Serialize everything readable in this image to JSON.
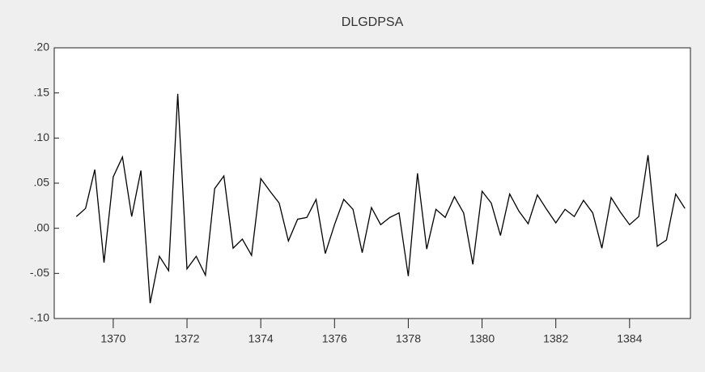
{
  "chart_data": {
    "type": "line",
    "title": "DLGDPSA",
    "x": [
      1369,
      1369.25,
      1369.5,
      1369.75,
      1370,
      1370.25,
      1370.5,
      1370.75,
      1371,
      1371.25,
      1371.5,
      1371.75,
      1372,
      1372.25,
      1372.5,
      1372.75,
      1373,
      1373.25,
      1373.5,
      1373.75,
      1374,
      1374.25,
      1374.5,
      1374.75,
      1375,
      1375.25,
      1375.5,
      1375.75,
      1376,
      1376.25,
      1376.5,
      1376.75,
      1377,
      1377.25,
      1377.5,
      1377.75,
      1378,
      1378.25,
      1378.5,
      1378.75,
      1379,
      1379.25,
      1379.5,
      1379.75,
      1380,
      1380.25,
      1380.5,
      1380.75,
      1381,
      1381.25,
      1381.5,
      1381.75,
      1382,
      1382.25,
      1382.5,
      1382.75,
      1383,
      1383.25,
      1383.5,
      1383.75,
      1384,
      1384.25,
      1384.5,
      1384.75,
      1385,
      1385.25,
      1385.5
    ],
    "series": [
      {
        "color": "#000000",
        "values": [
          0.013,
          0.022,
          0.065,
          -0.038,
          0.057,
          0.079,
          0.013,
          0.064,
          -0.083,
          -0.031,
          -0.047,
          0.149,
          -0.045,
          -0.031,
          -0.052,
          0.044,
          0.058,
          -0.022,
          -0.012,
          -0.03,
          0.055,
          0.041,
          0.028,
          -0.014,
          0.01,
          0.012,
          0.032,
          -0.028,
          0.004,
          0.032,
          0.021,
          -0.027,
          0.023,
          0.004,
          0.012,
          0.017,
          -0.053,
          0.061,
          -0.023,
          0.021,
          0.012,
          0.035,
          0.017,
          -0.04,
          0.041,
          0.028,
          -0.008,
          0.038,
          0.019,
          0.005,
          0.037,
          0.021,
          0.006,
          0.021,
          0.013,
          0.031,
          0.017,
          -0.022,
          0.034,
          0.018,
          0.004,
          0.013,
          0.081,
          -0.02,
          -0.013,
          0.038,
          0.022
        ]
      }
    ],
    "xlim": [
      1368.4,
      1385.65
    ],
    "xticks": [
      1370,
      1372,
      1374,
      1376,
      1378,
      1380,
      1382,
      1384
    ],
    "ylim": [
      -0.1,
      0.2
    ],
    "yticks": [
      {
        "value": -0.1,
        "label": "-.10"
      },
      {
        "value": -0.05,
        "label": "-.05"
      },
      {
        "value": 0,
        "label": ".00"
      },
      {
        "value": 0.05,
        "label": ".05"
      },
      {
        "value": 0.1,
        "label": ".10"
      },
      {
        "value": 0.15,
        "label": ".15"
      },
      {
        "value": 0.2,
        "label": ".20"
      }
    ]
  }
}
